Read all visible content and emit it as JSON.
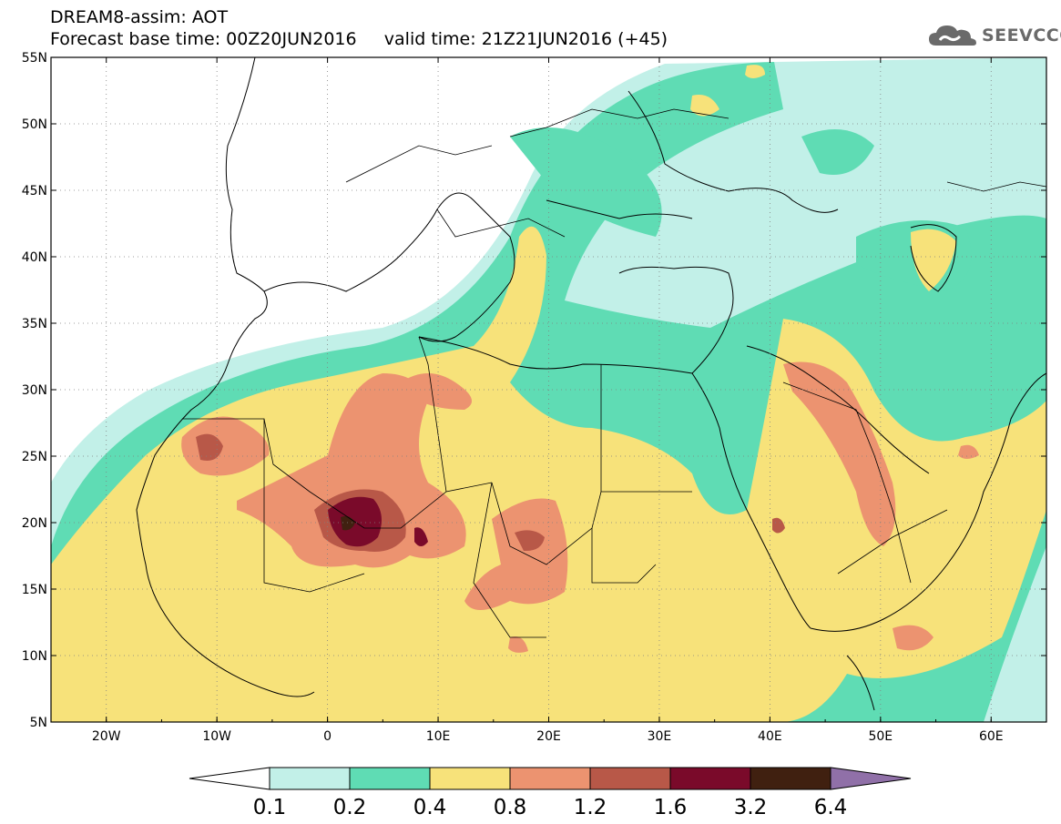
{
  "header": {
    "title_line1": "DREAM8-assim: AOT",
    "title_line2": "Forecast base time: 00Z20JUN2016     valid time: 21Z21JUN2016 (+45)"
  },
  "brand": {
    "name": "SEEVCCC",
    "icon": "cloud-logo-icon"
  },
  "map": {
    "lon_range": [
      -25,
      65
    ],
    "lat_range": [
      5,
      55
    ],
    "lat_ticks": [
      "5N",
      "10N",
      "15N",
      "20N",
      "25N",
      "30N",
      "35N",
      "40N",
      "45N",
      "50N",
      "55N"
    ],
    "lon_ticks": [
      "20W",
      "10W",
      "0",
      "10E",
      "20E",
      "30E",
      "40E",
      "50E",
      "60E"
    ],
    "grid": "dotted"
  },
  "legend": {
    "labels": [
      "0.1",
      "0.2",
      "0.4",
      "0.8",
      "1.2",
      "1.6",
      "3.2",
      "6.4"
    ],
    "colors": [
      "#ffffff",
      "#c2f0e8",
      "#5fdcb4",
      "#f7e27a",
      "#ec9370",
      "#b85848",
      "#7a0a2a",
      "#402010",
      "#9070a8"
    ]
  }
}
